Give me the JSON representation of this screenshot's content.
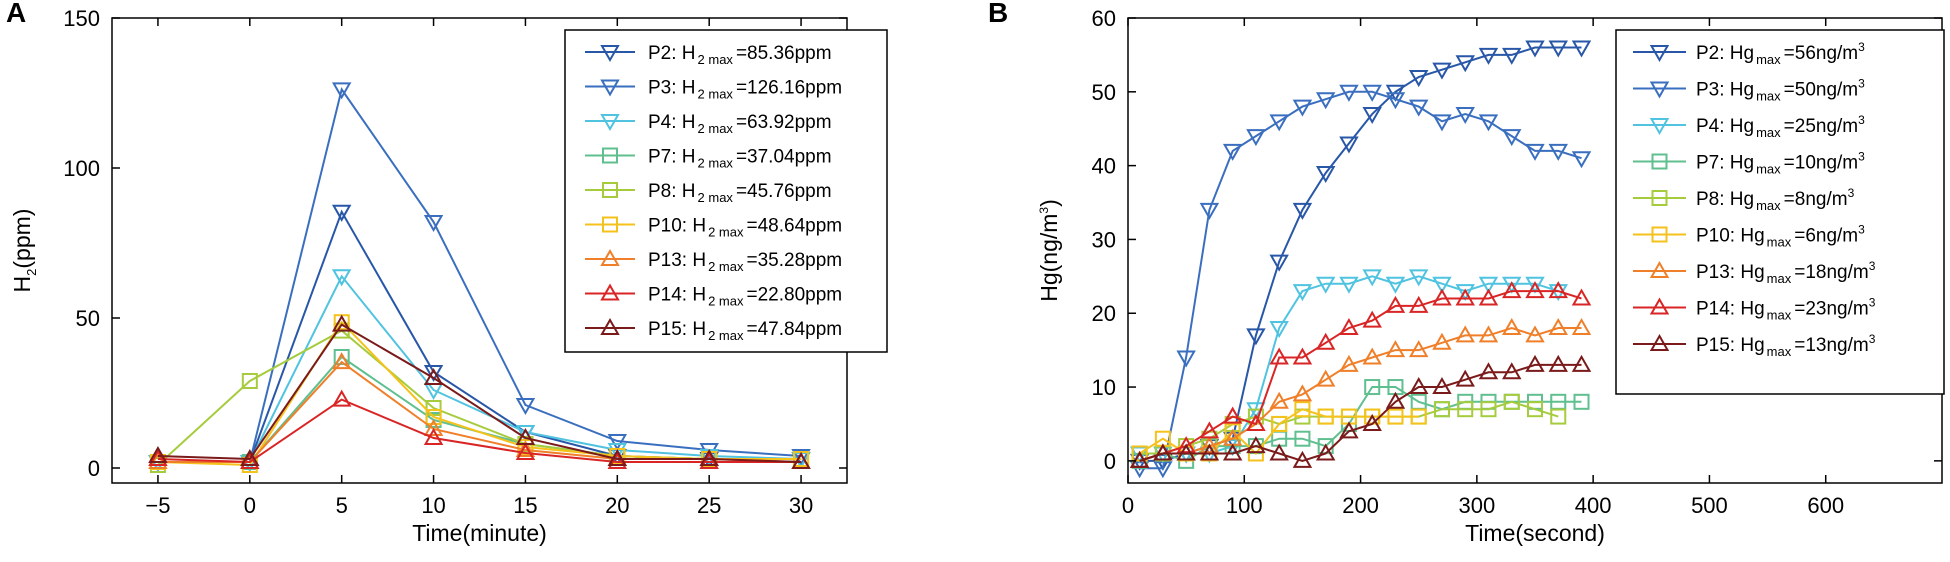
{
  "chart_data": [
    {
      "type": "line",
      "panel_label": "A",
      "xlabel": "Time(minute)",
      "ylabel": {
        "prefix": "H",
        "sub": "2",
        "suffix": "(ppm)"
      },
      "xlim": [
        -7.5,
        32.5
      ],
      "ylim": [
        -5,
        150
      ],
      "xticks": [
        -5,
        0,
        5,
        10,
        15,
        20,
        25,
        30
      ],
      "xtick_labels": [
        "−5",
        "0",
        "5",
        "10",
        "15",
        "20",
        "25",
        "30"
      ],
      "yticks": [
        0,
        50,
        100,
        150
      ],
      "ytick_labels": [
        "0",
        "50",
        "100",
        "150"
      ],
      "legend_position": "top-right",
      "series": [
        {
          "name": "P2",
          "legend": {
            "label": "P2: H",
            "sub": "2 max",
            "value": "=85.36ppm"
          },
          "color": "#2957a8",
          "marker": "triangle-down",
          "line": true,
          "x": [
            -5,
            0,
            5,
            10,
            15,
            20,
            25,
            30
          ],
          "y": [
            2,
            2,
            85.4,
            32,
            12,
            4,
            3,
            3
          ]
        },
        {
          "name": "P3",
          "legend": {
            "label": "P3: H",
            "sub": "2 max",
            "value": "=126.16ppm"
          },
          "color": "#3a6fbf",
          "marker": "triangle-down",
          "line": true,
          "x": [
            -5,
            0,
            5,
            10,
            15,
            20,
            25,
            30
          ],
          "y": [
            2,
            2,
            126.2,
            82,
            21,
            9,
            6,
            4
          ]
        },
        {
          "name": "P4",
          "legend": {
            "label": "P4: H",
            "sub": "2 max",
            "value": "=63.92ppm"
          },
          "color": "#4fc3e0",
          "marker": "triangle-down",
          "line": true,
          "x": [
            -5,
            0,
            5,
            10,
            15,
            20,
            25,
            30
          ],
          "y": [
            2,
            2,
            63.9,
            26,
            12,
            6,
            4,
            3
          ]
        },
        {
          "name": "P7",
          "legend": {
            "label": "P7: H",
            "sub": "2 max",
            "value": "=37.04ppm"
          },
          "color": "#5fbf8f",
          "marker": "square",
          "line": true,
          "x": [
            -5,
            0,
            5,
            10,
            15,
            20,
            25,
            30
          ],
          "y": [
            2,
            2,
            37,
            16,
            8,
            4,
            3,
            3
          ]
        },
        {
          "name": "P8",
          "legend": {
            "label": "P8: H",
            "sub": "2 max",
            "value": "=45.76ppm"
          },
          "color": "#a6cc3e",
          "marker": "square",
          "line": true,
          "x": [
            -5,
            0,
            5,
            10,
            15,
            20,
            25,
            30
          ],
          "y": [
            1,
            29,
            45.8,
            20,
            8,
            4,
            3,
            3
          ]
        },
        {
          "name": "P10",
          "legend": {
            "label": "P10: H",
            "sub": "2 max",
            "value": "=48.64ppm"
          },
          "color": "#f5c21b",
          "marker": "square",
          "line": true,
          "x": [
            -5,
            0,
            5,
            10,
            15,
            20,
            25,
            30
          ],
          "y": [
            2,
            1,
            48.6,
            17,
            7,
            4,
            3,
            3
          ]
        },
        {
          "name": "P13",
          "legend": {
            "label": "P13: H",
            "sub": "2 max",
            "value": "=35.28ppm"
          },
          "color": "#f07f2a",
          "marker": "triangle-up",
          "line": true,
          "x": [
            -5,
            0,
            5,
            10,
            15,
            20,
            25,
            30
          ],
          "y": [
            2,
            2,
            35.3,
            13,
            6,
            3,
            3,
            2
          ]
        },
        {
          "name": "P14",
          "legend": {
            "label": "P14: H",
            "sub": "2 max",
            "value": "=22.80ppm"
          },
          "color": "#d92525",
          "marker": "triangle-up",
          "line": true,
          "x": [
            -5,
            0,
            5,
            10,
            15,
            20,
            25,
            30
          ],
          "y": [
            3,
            2,
            22.8,
            10,
            5,
            2,
            2,
            2
          ]
        },
        {
          "name": "P15",
          "legend": {
            "label": "P15: H",
            "sub": "2 max",
            "value": "=47.84ppm"
          },
          "color": "#7a1a1a",
          "marker": "triangle-up",
          "line": true,
          "x": [
            -5,
            0,
            5,
            10,
            15,
            20,
            25,
            30
          ],
          "y": [
            4,
            3,
            47.8,
            30,
            10,
            3,
            3,
            2
          ]
        }
      ]
    },
    {
      "type": "line",
      "panel_label": "B",
      "xlabel": "Time(second)",
      "ylabel": {
        "prefix": "Hg(ng/m",
        "sup": "3",
        "suffix": ")"
      },
      "xlim": [
        0,
        700
      ],
      "ylim": [
        -3,
        60
      ],
      "xticks": [
        0,
        100,
        200,
        300,
        400,
        500,
        600
      ],
      "xtick_labels": [
        "0",
        "100",
        "200",
        "300",
        "400",
        "500",
        "600"
      ],
      "yticks": [
        0,
        10,
        20,
        30,
        40,
        50,
        60
      ],
      "ytick_labels": [
        "0",
        "10",
        "20",
        "30",
        "40",
        "50",
        "60"
      ],
      "legend_position": "top-right",
      "series": [
        {
          "name": "P2",
          "legend": {
            "label": "P2: Hg",
            "sub": "max",
            "value": "=56ng/m",
            "sup": "3"
          },
          "color": "#2957a8",
          "marker": "triangle-down",
          "line": true,
          "x": [
            10,
            30,
            50,
            70,
            90,
            110,
            130,
            150,
            170,
            190,
            210,
            230,
            250,
            270,
            290,
            310,
            330,
            350,
            370,
            390
          ],
          "y": [
            0,
            0,
            1,
            2,
            3,
            17,
            27,
            34,
            39,
            43,
            47,
            50,
            52,
            53,
            54,
            55,
            55,
            56,
            56,
            56
          ]
        },
        {
          "name": "P3",
          "legend": {
            "label": "P3: Hg",
            "sub": "max",
            "value": "=50ng/m",
            "sup": "3"
          },
          "color": "#3a6fbf",
          "marker": "triangle-down",
          "line": true,
          "x": [
            10,
            30,
            50,
            70,
            90,
            110,
            130,
            150,
            170,
            190,
            210,
            230,
            250,
            270,
            290,
            310,
            330,
            350,
            370,
            390
          ],
          "y": [
            -1,
            -1,
            14,
            34,
            42,
            44,
            46,
            48,
            49,
            50,
            50,
            49,
            48,
            46,
            47,
            46,
            44,
            42,
            42,
            41
          ]
        },
        {
          "name": "P4",
          "legend": {
            "label": "P4: Hg",
            "sub": "max",
            "value": "=25ng/m",
            "sup": "3"
          },
          "color": "#4fc3e0",
          "marker": "triangle-down",
          "line": true,
          "x": [
            10,
            30,
            50,
            70,
            90,
            110,
            130,
            150,
            170,
            190,
            210,
            230,
            250,
            270,
            290,
            310,
            330,
            350,
            370
          ],
          "y": [
            1,
            1,
            1,
            1,
            2,
            7,
            18,
            23,
            24,
            24,
            25,
            24,
            25,
            24,
            23,
            24,
            24,
            24,
            23
          ]
        },
        {
          "name": "P7",
          "legend": {
            "label": "P7: Hg",
            "sub": "max",
            "value": "=10ng/m",
            "sup": "3"
          },
          "color": "#5fbf8f",
          "marker": "square",
          "line": true,
          "x": [
            10,
            30,
            50,
            70,
            90,
            110,
            130,
            150,
            170,
            190,
            210,
            230,
            250,
            270,
            290,
            310,
            330,
            350,
            370,
            390
          ],
          "y": [
            0,
            1,
            0,
            2,
            2,
            2,
            3,
            3,
            2,
            5,
            10,
            10,
            8,
            7,
            8,
            8,
            8,
            8,
            8,
            8
          ]
        },
        {
          "name": "P8",
          "legend": {
            "label": "P8: Hg",
            "sub": "max",
            "value": "=8ng/m",
            "sup": "3"
          },
          "color": "#a6cc3e",
          "marker": "square",
          "line": true,
          "x": [
            10,
            30,
            50,
            70,
            90,
            110,
            130,
            150,
            170,
            190,
            210,
            230,
            250,
            270,
            290,
            310,
            330,
            350,
            370
          ],
          "y": [
            1,
            1,
            2,
            3,
            5,
            6,
            5,
            6,
            6,
            6,
            6,
            6,
            6,
            7,
            7,
            7,
            8,
            7,
            6
          ]
        },
        {
          "name": "P10",
          "legend": {
            "label": "P10: Hg",
            "sub": "max",
            "value": "=6ng/m",
            "sup": "3"
          },
          "color": "#f5c21b",
          "marker": "square",
          "line": true,
          "x": [
            10,
            30,
            50,
            70,
            90,
            110,
            130,
            150,
            170,
            190,
            210,
            230,
            250
          ],
          "y": [
            1,
            3,
            1,
            1,
            4,
            1,
            5,
            7,
            6,
            6,
            6,
            6,
            6
          ]
        },
        {
          "name": "P13",
          "legend": {
            "label": "P13: Hg",
            "sub": "max",
            "value": "=18ng/m",
            "sup": "3"
          },
          "color": "#f07f2a",
          "marker": "triangle-up",
          "line": true,
          "x": [
            10,
            30,
            50,
            70,
            90,
            110,
            130,
            150,
            170,
            190,
            210,
            230,
            250,
            270,
            290,
            310,
            330,
            350,
            370,
            390
          ],
          "y": [
            0,
            1,
            1,
            2,
            3,
            5,
            8,
            9,
            11,
            13,
            14,
            15,
            15,
            16,
            17,
            17,
            18,
            17,
            18,
            18
          ]
        },
        {
          "name": "P14",
          "legend": {
            "label": "P14: Hg",
            "sub": "max",
            "value": "=23ng/m",
            "sup": "3"
          },
          "color": "#d92525",
          "marker": "triangle-up",
          "line": true,
          "x": [
            10,
            30,
            50,
            70,
            90,
            110,
            130,
            150,
            170,
            190,
            210,
            230,
            250,
            270,
            290,
            310,
            330,
            350,
            370,
            390
          ],
          "y": [
            0,
            1,
            2,
            4,
            6,
            5,
            14,
            14,
            16,
            18,
            19,
            21,
            21,
            22,
            22,
            22,
            23,
            23,
            23,
            22
          ]
        },
        {
          "name": "P15",
          "legend": {
            "label": "P15: Hg",
            "sub": "max",
            "value": "=13ng/m",
            "sup": "3"
          },
          "color": "#7a1a1a",
          "marker": "triangle-up",
          "line": true,
          "x": [
            10,
            30,
            50,
            70,
            90,
            110,
            130,
            150,
            170,
            190,
            210,
            230,
            250,
            270,
            290,
            310,
            330,
            350,
            370,
            390
          ],
          "y": [
            0,
            1,
            1,
            1,
            1,
            2,
            1,
            0,
            1,
            4,
            5,
            8,
            10,
            10,
            11,
            12,
            12,
            13,
            13,
            13
          ]
        }
      ]
    }
  ]
}
